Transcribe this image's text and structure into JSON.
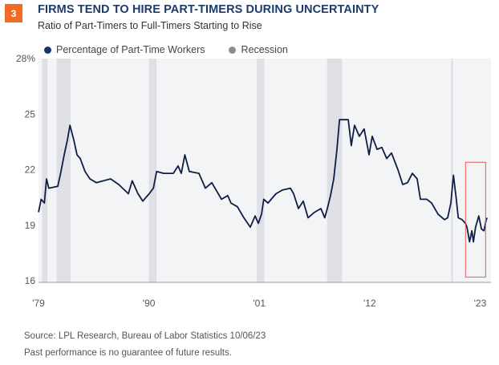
{
  "badge": "3",
  "title": "FIRMS TEND TO HIRE PART-TIMERS DURING UNCERTAINTY",
  "subtitle": "Ratio of Part-Timers to Full-Timers Starting to Rise",
  "footer": {
    "source": "Source: LPL Research, Bureau of Labor Statistics  10/06/23",
    "disclaimer": "Past performance is no guarantee of future results."
  },
  "chart_data": {
    "type": "line",
    "title": "FIRMS TEND TO HIRE PART-TIMERS DURING UNCERTAINTY",
    "subtitle": "Ratio of Part-Timers to Full-Timers Starting to Rise",
    "xlim": [
      1979.0,
      2024.0
    ],
    "ylim": [
      16,
      28
    ],
    "y_ticks": [
      {
        "value": 28,
        "label": "28%"
      },
      {
        "value": 25,
        "label": "25"
      },
      {
        "value": 22,
        "label": "22"
      },
      {
        "value": 19,
        "label": "19"
      },
      {
        "value": 16,
        "label": "16"
      }
    ],
    "x_ticks": [
      {
        "value": 1979.0,
        "label": "'79"
      },
      {
        "value": 1990.0,
        "label": "'90"
      },
      {
        "value": 2001.0,
        "label": "'01"
      },
      {
        "value": 2012.0,
        "label": "'12"
      },
      {
        "value": 2023.0,
        "label": "'23"
      }
    ],
    "grid": false,
    "legend_position": "top-left",
    "colors": {
      "line": "#0e1f45",
      "recession": "#dfe0e5",
      "plot_bg": "#f3f4f6",
      "highlight": "#e8595a",
      "badge": "#f26b22",
      "title": "#1d3c6b"
    },
    "legend": [
      {
        "label": "Percentage of Part-Time Workers",
        "color": "#1a3563"
      },
      {
        "label": "Recession",
        "color": "#8c8d90"
      }
    ],
    "recessions": [
      [
        1979.35,
        1979.9
      ],
      [
        1980.8,
        1982.2
      ],
      [
        1990.0,
        1990.75
      ],
      [
        2000.75,
        2001.5
      ],
      [
        2007.75,
        2009.25
      ],
      [
        2020.1,
        2020.3
      ]
    ],
    "highlight_box": {
      "x": [
        2021.55,
        2023.55
      ],
      "y": [
        16.2,
        22.4
      ]
    },
    "series": [
      {
        "name": "Percentage of Part-Time Workers",
        "x": [
          1979.0,
          1979.26,
          1979.58,
          1979.8,
          1980.02,
          1980.92,
          1981.24,
          1981.56,
          1981.88,
          1982.13,
          1982.52,
          1982.84,
          1983.16,
          1983.64,
          1984.12,
          1984.76,
          1986.19,
          1986.99,
          1987.95,
          1988.34,
          1988.91,
          1989.39,
          1990.03,
          1990.45,
          1990.77,
          1991.47,
          1992.43,
          1992.91,
          1993.23,
          1993.58,
          1994.03,
          1994.99,
          1995.63,
          1996.27,
          1997.23,
          1997.86,
          1998.18,
          1998.82,
          1999.46,
          2000.1,
          2000.58,
          2000.9,
          2001.22,
          2001.45,
          2001.86,
          2002.66,
          2003.3,
          2004.1,
          2004.42,
          2004.9,
          2005.38,
          2005.86,
          2006.5,
          2007.14,
          2007.52,
          2007.78,
          2008.1,
          2008.42,
          2008.74,
          2008.99,
          2009.54,
          2009.86,
          2010.17,
          2010.49,
          2010.97,
          2011.45,
          2011.93,
          2012.25,
          2012.73,
          2013.21,
          2013.69,
          2014.17,
          2014.81,
          2015.29,
          2015.77,
          2016.25,
          2016.73,
          2017.05,
          2017.69,
          2018.17,
          2018.81,
          2019.45,
          2019.77,
          2020.09,
          2020.34,
          2020.63,
          2020.82,
          2021.21,
          2021.53,
          2021.69,
          2021.95,
          2022.18,
          2022.33,
          2022.55,
          2022.87,
          2023.13,
          2023.38,
          2023.61,
          2023.7
        ],
        "values": [
          19.7,
          20.4,
          20.2,
          21.5,
          21.0,
          21.1,
          21.9,
          22.8,
          23.6,
          24.4,
          23.6,
          22.8,
          22.6,
          21.9,
          21.5,
          21.3,
          21.5,
          21.2,
          20.7,
          21.4,
          20.7,
          20.3,
          20.7,
          21.0,
          21.9,
          21.8,
          21.8,
          22.2,
          21.8,
          22.8,
          21.9,
          21.8,
          21.0,
          21.3,
          20.4,
          20.6,
          20.2,
          20.0,
          19.4,
          18.9,
          19.5,
          19.1,
          19.6,
          20.4,
          20.2,
          20.7,
          20.9,
          21.0,
          20.7,
          19.9,
          20.3,
          19.4,
          19.7,
          19.9,
          19.4,
          19.9,
          20.6,
          21.5,
          23.1,
          24.7,
          24.7,
          24.7,
          23.3,
          24.4,
          23.8,
          24.2,
          22.8,
          23.8,
          23.1,
          23.2,
          22.6,
          22.9,
          22.0,
          21.2,
          21.3,
          21.8,
          21.5,
          20.4,
          20.4,
          20.2,
          19.6,
          19.3,
          19.4,
          20.2,
          21.7,
          20.4,
          19.4,
          19.3,
          19.1,
          18.9,
          18.1,
          18.7,
          18.1,
          18.9,
          19.5,
          18.8,
          18.7,
          19.3,
          19.4
        ]
      }
    ]
  }
}
